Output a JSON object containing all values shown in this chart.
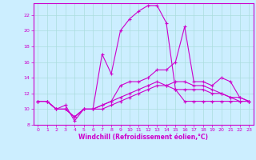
{
  "xlabel": "Windchill (Refroidissement éolien,°C)",
  "ylabel": "",
  "bg_color": "#cceeff",
  "line_color": "#cc00cc",
  "grid_color": "#aadddd",
  "xlim": [
    -0.5,
    23.5
  ],
  "ylim": [
    8,
    23.5
  ],
  "xticks": [
    0,
    1,
    2,
    3,
    4,
    5,
    6,
    7,
    8,
    9,
    10,
    11,
    12,
    13,
    14,
    15,
    16,
    17,
    18,
    19,
    20,
    21,
    22,
    23
  ],
  "yticks": [
    8,
    10,
    12,
    14,
    16,
    18,
    20,
    22
  ],
  "line1_x": [
    0,
    1,
    2,
    3,
    4,
    5,
    6,
    7,
    8,
    9,
    10,
    11,
    12,
    13,
    14,
    15,
    16,
    17,
    18,
    19,
    20,
    21,
    22,
    23
  ],
  "line1_y": [
    11,
    11,
    10,
    10.5,
    8.5,
    10,
    10,
    10.5,
    11,
    13,
    13.5,
    13.5,
    14,
    15,
    15,
    16,
    20.5,
    13.5,
    13.5,
    13,
    14,
    13.5,
    11.5,
    11
  ],
  "line2_x": [
    0,
    1,
    2,
    3,
    4,
    5,
    6,
    7,
    8,
    9,
    10,
    11,
    12,
    13,
    14,
    15,
    16,
    17,
    18,
    19,
    20,
    21,
    22,
    23
  ],
  "line2_y": [
    11,
    11,
    10,
    10,
    9,
    10,
    10,
    17,
    14.5,
    20,
    21.5,
    22.5,
    23.2,
    23.2,
    21,
    12.5,
    11,
    11,
    11,
    11,
    11,
    11,
    11,
    11
  ],
  "line3_x": [
    0,
    1,
    2,
    3,
    4,
    5,
    6,
    7,
    8,
    9,
    10,
    11,
    12,
    13,
    14,
    15,
    16,
    17,
    18,
    19,
    20,
    21,
    22,
    23
  ],
  "line3_y": [
    11,
    11,
    10,
    10,
    9,
    10,
    10,
    10,
    10.5,
    11,
    11.5,
    12,
    12.5,
    13,
    13,
    13.5,
    13.5,
    13,
    13,
    12.5,
    12,
    11.5,
    11,
    11
  ],
  "line4_x": [
    0,
    1,
    2,
    3,
    4,
    5,
    6,
    7,
    8,
    9,
    10,
    11,
    12,
    13,
    14,
    15,
    16,
    17,
    18,
    19,
    20,
    21,
    22,
    23
  ],
  "line4_y": [
    11,
    11,
    10,
    10,
    9,
    10,
    10,
    10.5,
    11,
    11.5,
    12,
    12.5,
    13,
    13.5,
    13,
    12.5,
    12.5,
    12.5,
    12.5,
    12,
    12,
    11.5,
    11.5,
    11
  ]
}
